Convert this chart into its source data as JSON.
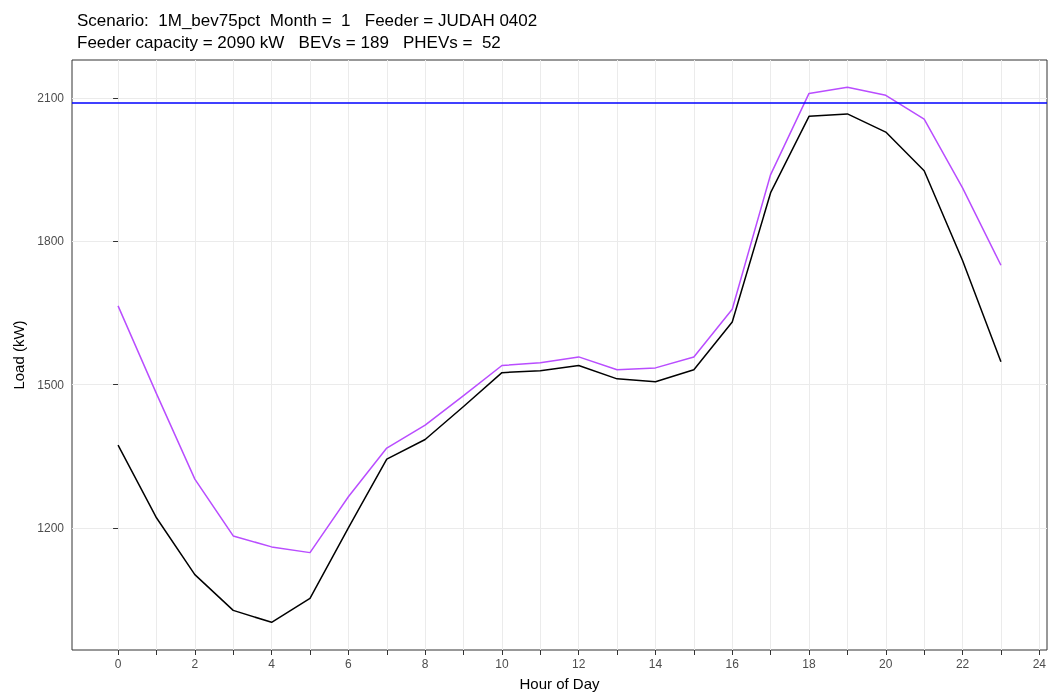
{
  "chart_data": {
    "type": "line",
    "title": "Scenario:  1M_bev75pct  Month =  1   Feeder = JUDAH 0402\nFeeder capacity = 2090 kW   BEVs = 189   PHEVs =  52",
    "xlabel": "Hour of Day",
    "ylabel": "Load (kW)",
    "x": [
      0,
      1,
      2,
      3,
      4,
      5,
      6,
      7,
      8,
      9,
      10,
      11,
      12,
      13,
      14,
      15,
      16,
      17,
      18,
      19,
      20,
      21,
      22,
      23
    ],
    "series": [
      {
        "color": "#000000",
        "values": [
          1373,
          1221,
          1102,
          1027,
          1002,
          1052,
          1200,
          1344,
          1385,
          1454,
          1525,
          1529,
          1540,
          1512,
          1506,
          1531,
          1631,
          1902,
          2062,
          2067,
          2029,
          1948,
          1760,
          1548
        ]
      },
      {
        "color": "#b94dff",
        "values": [
          1665,
          1481,
          1302,
          1183,
          1160,
          1148,
          1265,
          1367,
          1415,
          1477,
          1540,
          1546,
          1558,
          1531,
          1535,
          1558,
          1658,
          1940,
          2110,
          2123,
          2106,
          2056,
          1912,
          1750
        ]
      }
    ],
    "xlim": [
      -1.2,
      24.2
    ],
    "xticks": [
      0,
      {
        "value": 1,
        "label": null
      },
      2,
      {
        "value": 3,
        "label": null
      },
      4,
      {
        "value": 5,
        "label": null
      },
      6,
      {
        "value": 7,
        "label": null
      },
      8,
      {
        "value": 9,
        "label": null
      },
      10,
      {
        "value": 11,
        "label": null
      },
      12,
      {
        "value": 13,
        "label": null
      },
      14,
      {
        "value": 15,
        "label": null
      },
      16,
      {
        "value": 17,
        "label": null
      },
      18,
      {
        "value": 19,
        "label": null
      },
      20,
      {
        "value": 21,
        "label": null
      },
      22,
      {
        "value": 23,
        "label": null
      },
      24
    ],
    "ylim": [
      944,
      2180
    ],
    "yticks": [
      1200,
      1500,
      1800,
      2100
    ],
    "ref_lines": [
      {
        "axis": "y",
        "value": 2090,
        "color": "#0000ff"
      }
    ],
    "grid": true,
    "marker": "none",
    "line_style": "solid"
  }
}
